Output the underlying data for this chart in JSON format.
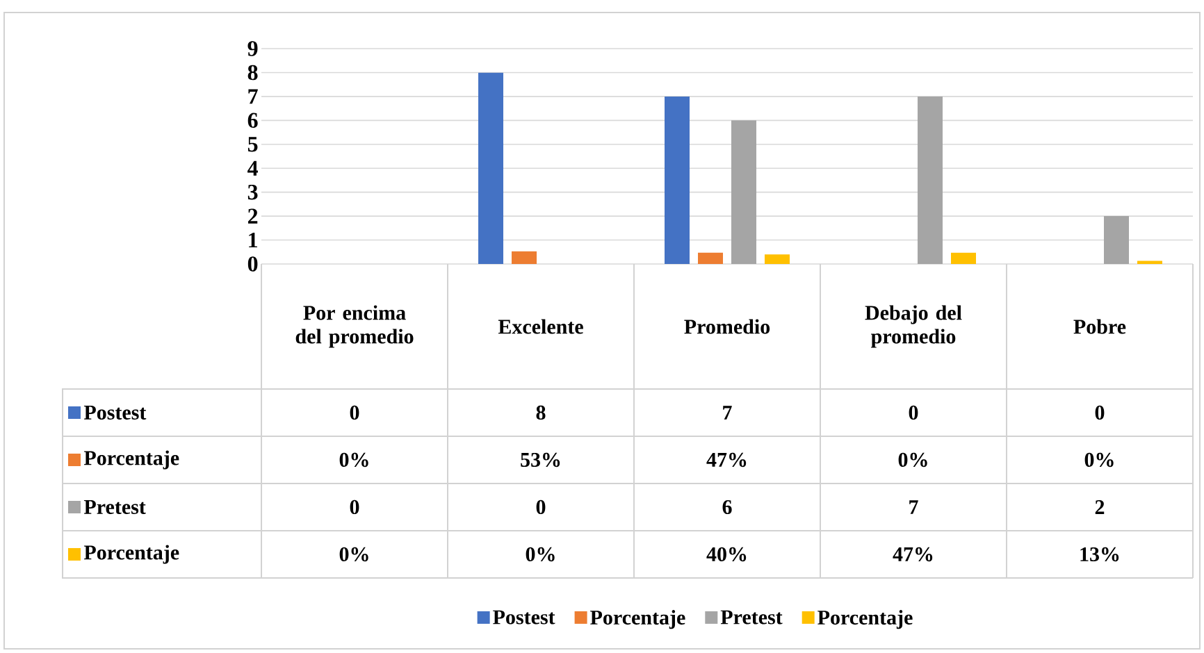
{
  "chart_data": {
    "type": "bar",
    "categories": [
      "Por encima del promedio",
      "Excelente",
      "Promedio",
      "Debajo del promedio",
      "Pobre"
    ],
    "series": [
      {
        "name": "Postest",
        "color": "#4472c4",
        "values": [
          0,
          8,
          7,
          0,
          0
        ],
        "value_labels": [
          "0",
          "8",
          "7",
          "0",
          "0"
        ]
      },
      {
        "name": "Porcentaje",
        "color": "#ed7d31",
        "values": [
          0,
          0.53,
          0.47,
          0,
          0
        ],
        "value_labels": [
          "0%",
          "53%",
          "47%",
          "0%",
          "0%"
        ]
      },
      {
        "name": "Pretest",
        "color": "#a5a5a5",
        "values": [
          0,
          0,
          6,
          7,
          2
        ],
        "value_labels": [
          "0",
          "0",
          "6",
          "7",
          "2"
        ]
      },
      {
        "name": "Porcentaje",
        "color": "#ffc000",
        "values": [
          0,
          0,
          0.4,
          0.47,
          0.13
        ],
        "value_labels": [
          "0%",
          "0%",
          "40%",
          "47%",
          "13%"
        ]
      }
    ],
    "ylim": [
      0,
      9
    ],
    "yticks": [
      0,
      1,
      2,
      3,
      4,
      5,
      6,
      7,
      8,
      9
    ],
    "grid": "y",
    "legend": "bottom"
  }
}
